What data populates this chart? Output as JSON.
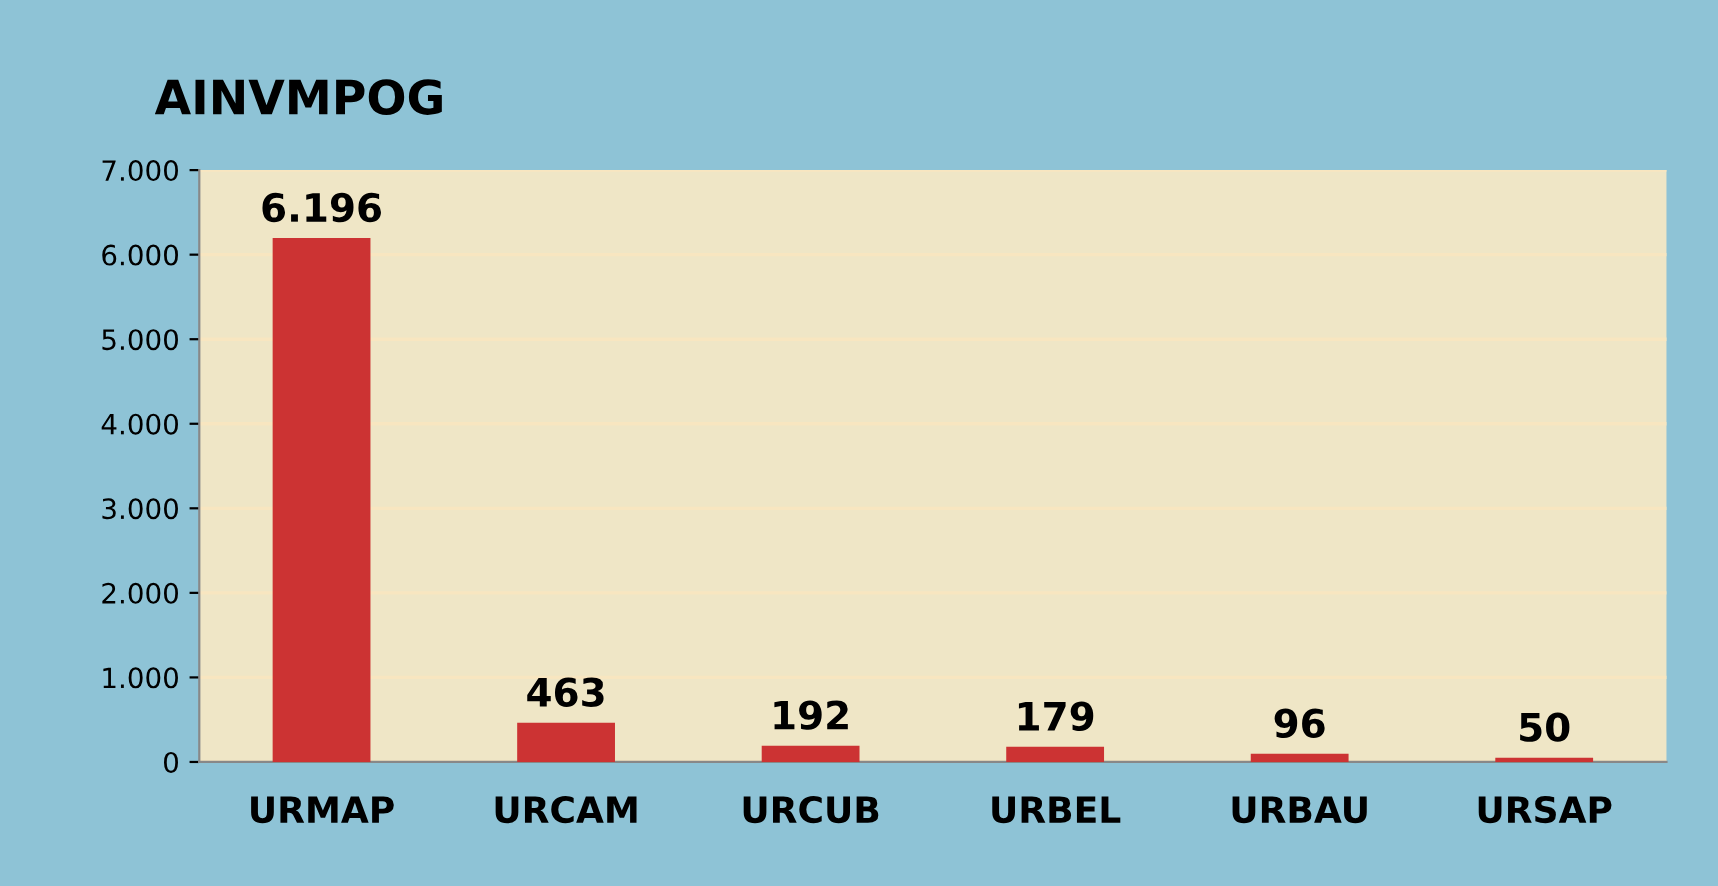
{
  "chart_data": {
    "type": "bar",
    "title": "AINVMPOG",
    "categories": [
      "URMAP",
      "URCAM",
      "URCUB",
      "URBEL",
      "URBAU",
      "URSAP"
    ],
    "values": [
      6196,
      463,
      192,
      179,
      96,
      50
    ],
    "value_labels": [
      "6.196",
      "463",
      "192",
      "179",
      "96",
      "50"
    ],
    "color": "#cc3333",
    "ylim": [
      0,
      7000
    ],
    "yticks": [
      0,
      {
        "value": 1000,
        "label": "1.000"
      },
      {
        "value": 2000,
        "label": "2.000"
      },
      {
        "value": 3000,
        "label": "3.000"
      },
      {
        "value": 4000,
        "label": "4.000"
      },
      {
        "value": 5000,
        "label": "5.000"
      },
      {
        "value": 6000,
        "label": "6.000"
      },
      {
        "value": 7000,
        "label": "7.000"
      }
    ],
    "grid": "y",
    "legend": false
  }
}
